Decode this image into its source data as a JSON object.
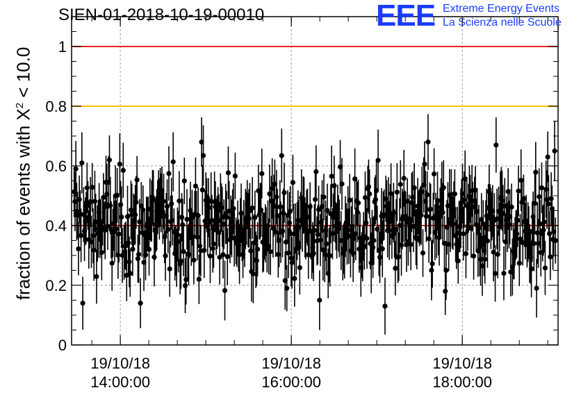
{
  "title": "SIEN-01-2018-10-19-00010",
  "logo": {
    "mark": "EEE",
    "line1": "Extreme Energy Events",
    "line2": "La Scienza nelle Scuole"
  },
  "ylabel": {
    "prefix": "fraction of events with X",
    "sup": "2",
    "suffix": " < 10.0"
  },
  "colors": {
    "accent_blue": "#1a3cff",
    "ref_red": "#e8201a",
    "ref_orange": "#ffc000",
    "marker": "#000000",
    "grid": "#999999"
  },
  "chart_data": {
    "type": "scatter",
    "title": "SIEN-01-2018-10-19-00010",
    "ylabel": "fraction of events with X^2 < 10.0",
    "ylim": [
      0,
      1.1
    ],
    "yticks": [
      "0",
      "0.2",
      "0.4",
      "0.6",
      "0.8",
      "1"
    ],
    "ytick_values": [
      0,
      0.2,
      0.4,
      0.6,
      0.8,
      1.0
    ],
    "x_start_hours": 13.43,
    "x_end_hours": 19.12,
    "xticks": [
      {
        "hours": 14.0,
        "date": "19/10/18",
        "time": "14:00:00"
      },
      {
        "hours": 16.0,
        "date": "19/10/18",
        "time": "16:00:00"
      },
      {
        "hours": 18.0,
        "date": "19/10/18",
        "time": "18:00:00"
      }
    ],
    "reference_lines": [
      {
        "y": 1.0,
        "color": "#e8201a"
      },
      {
        "y": 0.8,
        "color": "#ffc000"
      },
      {
        "y": 0.4,
        "color": "#e8201a"
      }
    ],
    "grid": true,
    "points_note": "≈560 points, one every ~37 s; values fluctuate around 0.40 (range ≈0.13–0.68), error bars ≈ ±0.09",
    "n_points": 560,
    "mean": 0.4,
    "error": 0.09,
    "sample_highlights": [
      {
        "hours": 13.48,
        "y": 0.59
      },
      {
        "hours": 13.56,
        "y": 0.14
      },
      {
        "hours": 13.55,
        "y": 0.61
      },
      {
        "hours": 13.87,
        "y": 0.62
      },
      {
        "hours": 14.24,
        "y": 0.14
      },
      {
        "hours": 14.95,
        "y": 0.68
      },
      {
        "hours": 15.95,
        "y": 0.19
      },
      {
        "hours": 16.33,
        "y": 0.15
      },
      {
        "hours": 17.1,
        "y": 0.13
      },
      {
        "hours": 17.6,
        "y": 0.68
      },
      {
        "hours": 17.8,
        "y": 0.18
      },
      {
        "hours": 18.4,
        "y": 0.67
      },
      {
        "hours": 18.87,
        "y": 0.19
      },
      {
        "hours": 19.0,
        "y": 0.63
      },
      {
        "hours": 19.08,
        "y": 0.65
      }
    ]
  }
}
